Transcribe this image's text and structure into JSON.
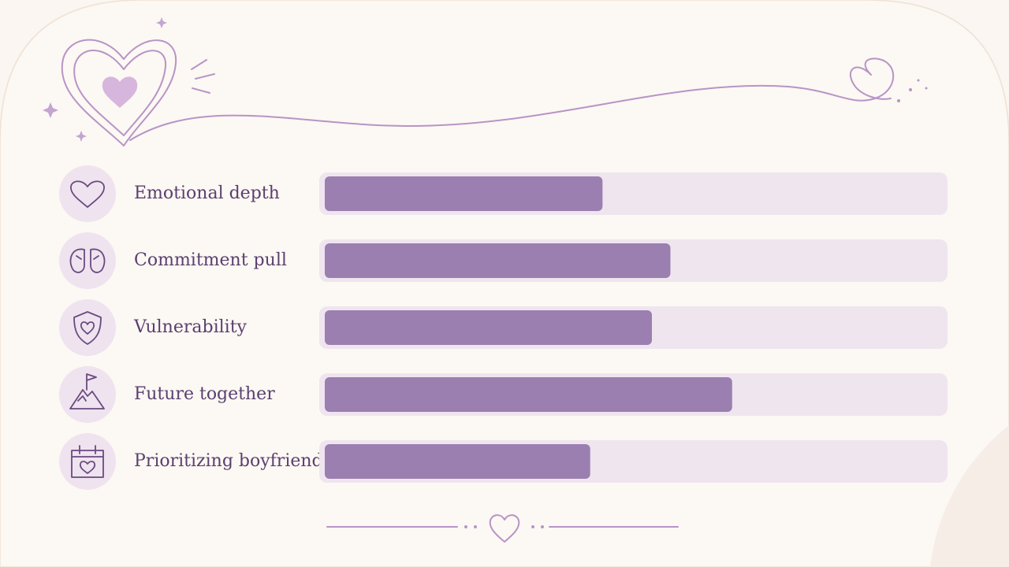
{
  "chart_data": {
    "type": "bar",
    "orientation": "horizontal",
    "categories": [
      "Emotional depth",
      "Commitment pull",
      "Vulnerability",
      "Future together",
      "Prioritizing boyfriend"
    ],
    "values": [
      45,
      56,
      53,
      66,
      43
    ],
    "color": "#9b7fb0",
    "track_color": "#efe5ef",
    "xlim": [
      0,
      100
    ]
  }
}
